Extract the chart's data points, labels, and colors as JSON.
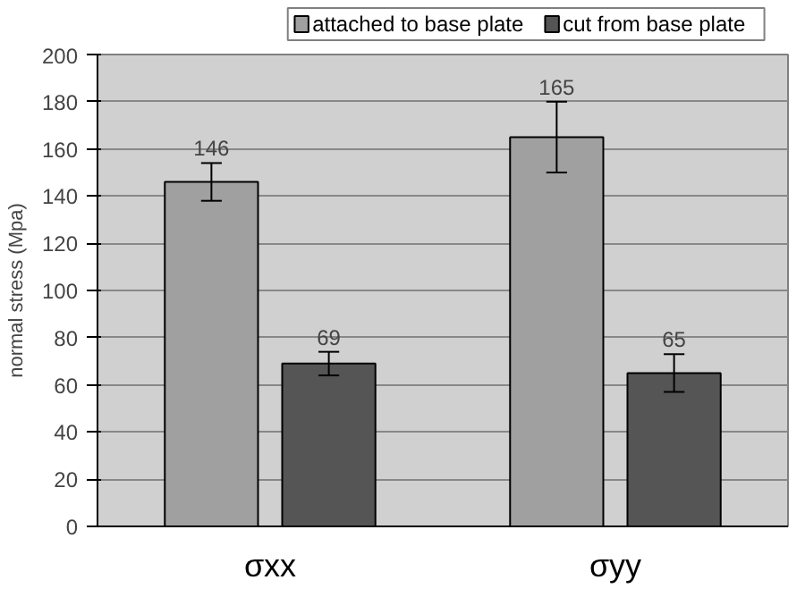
{
  "chart_data": {
    "type": "bar",
    "ylabel": "normal stress (Mpa)",
    "categories": [
      "σxx",
      "σyy"
    ],
    "series": [
      {
        "name": "attached to base plate",
        "color": "#a0a0a0",
        "values": [
          146,
          165
        ],
        "errors": [
          8,
          15
        ]
      },
      {
        "name": "cut from base plate",
        "color": "#555555",
        "values": [
          69,
          65
        ],
        "errors": [
          5,
          8
        ]
      }
    ],
    "ylim": [
      0,
      200
    ],
    "yticks": [
      0,
      20,
      40,
      60,
      80,
      100,
      120,
      140,
      160,
      180,
      200
    ],
    "grid": "y",
    "legend": "top",
    "data_labels": true
  }
}
